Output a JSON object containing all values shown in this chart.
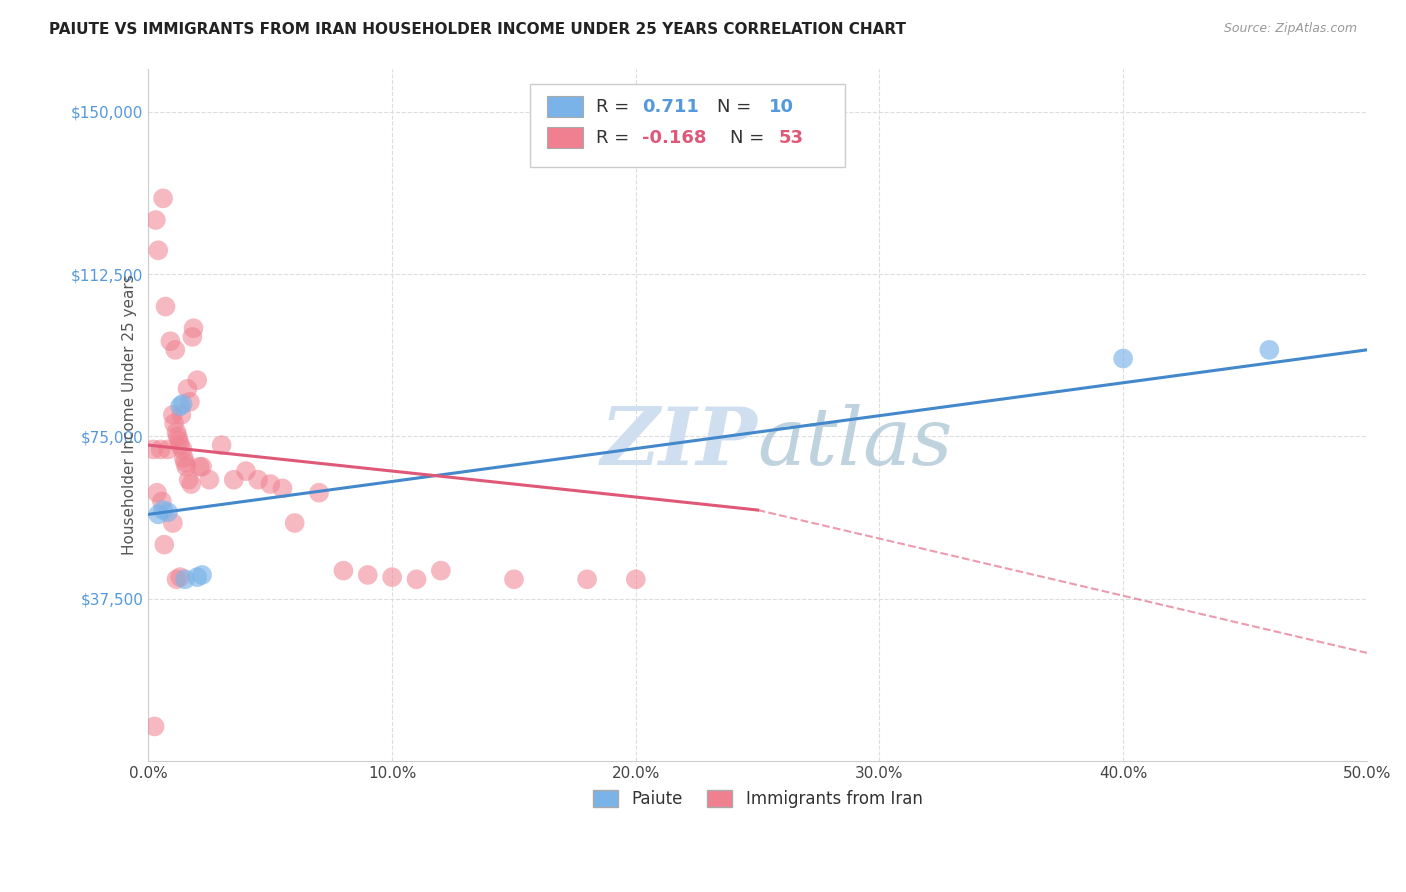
{
  "title": "PAIUTE VS IMMIGRANTS FROM IRAN HOUSEHOLDER INCOME UNDER 25 YEARS CORRELATION CHART",
  "source": "Source: ZipAtlas.com",
  "ylabel": "Householder Income Under 25 years",
  "xlabel_vals": [
    0,
    10,
    20,
    30,
    40,
    50
  ],
  "ytick_labels": [
    "$37,500",
    "$75,000",
    "$112,500",
    "$150,000"
  ],
  "ytick_vals": [
    37500,
    75000,
    112500,
    150000
  ],
  "ylim": [
    0,
    160000
  ],
  "xlim": [
    0,
    50
  ],
  "paiute_color": "#7ab3e8",
  "iran_color": "#f08090",
  "paiute_line_color": "#4488cc",
  "iran_line_color": "#e05878",
  "background_color": "#ffffff",
  "grid_color": "#dddddd",
  "watermark_color": "#d0dff0",
  "paiute_points": [
    [
      0.4,
      57000
    ],
    [
      0.6,
      58000
    ],
    [
      0.8,
      57500
    ],
    [
      1.3,
      82000
    ],
    [
      1.4,
      82500
    ],
    [
      1.5,
      42000
    ],
    [
      2.0,
      42500
    ],
    [
      2.2,
      43000
    ],
    [
      40.0,
      93000
    ],
    [
      46.0,
      95000
    ]
  ],
  "iran_points": [
    [
      0.2,
      72000
    ],
    [
      0.3,
      125000
    ],
    [
      0.4,
      118000
    ],
    [
      0.5,
      72000
    ],
    [
      0.6,
      130000
    ],
    [
      0.7,
      105000
    ],
    [
      0.8,
      72000
    ],
    [
      0.9,
      97000
    ],
    [
      1.0,
      80000
    ],
    [
      1.05,
      78000
    ],
    [
      1.1,
      95000
    ],
    [
      1.15,
      76000
    ],
    [
      1.2,
      75000
    ],
    [
      1.25,
      74000
    ],
    [
      1.3,
      73000
    ],
    [
      1.35,
      80000
    ],
    [
      1.4,
      72000
    ],
    [
      1.45,
      70000
    ],
    [
      1.5,
      69000
    ],
    [
      1.55,
      68000
    ],
    [
      1.6,
      86000
    ],
    [
      1.65,
      65000
    ],
    [
      1.7,
      83000
    ],
    [
      1.75,
      64000
    ],
    [
      1.8,
      98000
    ],
    [
      1.85,
      100000
    ],
    [
      2.0,
      88000
    ],
    [
      2.1,
      68000
    ],
    [
      2.2,
      68000
    ],
    [
      2.5,
      65000
    ],
    [
      3.0,
      73000
    ],
    [
      3.5,
      65000
    ],
    [
      4.0,
      67000
    ],
    [
      4.5,
      65000
    ],
    [
      5.0,
      64000
    ],
    [
      5.5,
      63000
    ],
    [
      6.0,
      55000
    ],
    [
      7.0,
      62000
    ],
    [
      8.0,
      44000
    ],
    [
      9.0,
      43000
    ],
    [
      10.0,
      42500
    ],
    [
      11.0,
      42000
    ],
    [
      12.0,
      44000
    ],
    [
      15.0,
      42000
    ],
    [
      18.0,
      42000
    ],
    [
      20.0,
      42000
    ],
    [
      0.35,
      62000
    ],
    [
      0.55,
      60000
    ],
    [
      1.0,
      55000
    ],
    [
      0.25,
      8000
    ],
    [
      0.65,
      50000
    ],
    [
      1.15,
      42000
    ],
    [
      1.3,
      42500
    ]
  ],
  "blue_line": {
    "x0": 0,
    "y0": 57000,
    "x1": 50,
    "y1": 95000
  },
  "pink_line_solid": {
    "x0": 0,
    "y0": 73000,
    "x1": 25,
    "y1": 58000
  },
  "pink_line_dash": {
    "x0": 25,
    "y0": 58000,
    "x1": 50,
    "y1": 25000
  },
  "title_fontsize": 11,
  "source_fontsize": 9,
  "axis_label_color": "#5599dd",
  "ylabel_color": "#555555"
}
